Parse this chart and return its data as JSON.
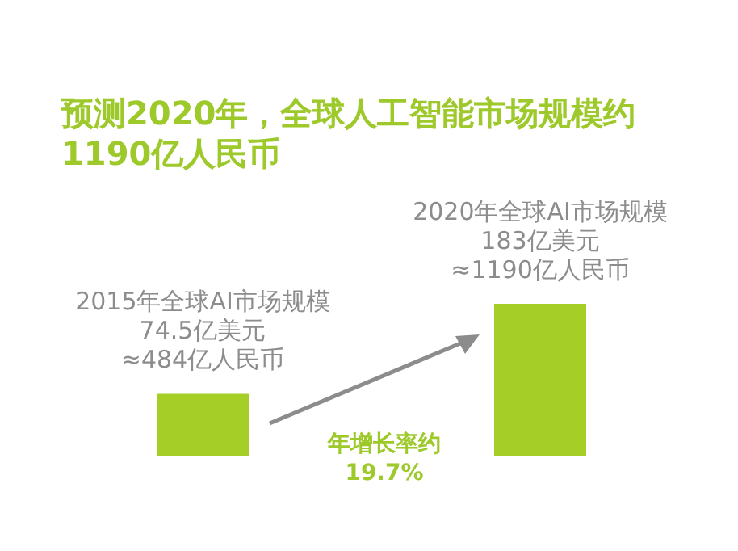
{
  "chart_data": {
    "type": "bar",
    "title": "预测2020年，全球人工智能市场规模约1190亿人民币",
    "categories": [
      null,
      null
    ],
    "values": [
      74.5,
      183
    ],
    "color": "#a5cf26",
    "value_labels": [
      "2015年全球AI市场规模\n74.5亿美元\n≈484亿人民币",
      "2020年全球AI市场规模\n183亿美元\n≈1190亿人民币"
    ],
    "annotations": [
      "年增长率约\n19.7%"
    ]
  }
}
